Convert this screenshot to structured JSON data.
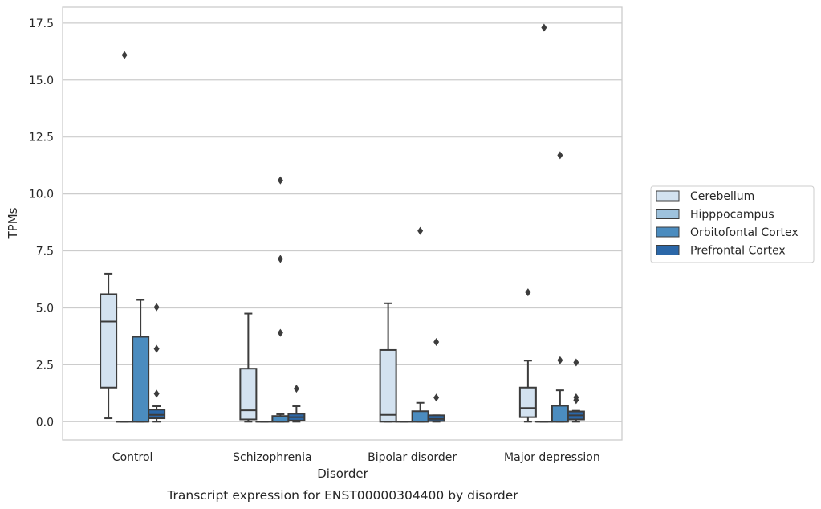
{
  "caption": "Transcript expression for ENST00000304400 by disorder",
  "chart_data": {
    "type": "box",
    "xlabel": "Disorder",
    "ylabel": "TPMs",
    "ylim": [
      -0.8,
      18.2
    ],
    "yticks": [
      "0.0",
      "2.5",
      "5.0",
      "7.5",
      "10.0",
      "12.5",
      "15.0",
      "17.5"
    ],
    "ytick_values": [
      0,
      2.5,
      5,
      7.5,
      10,
      12.5,
      15,
      17.5
    ],
    "grid": "horizontal",
    "legend_position": "right",
    "categories": [
      "Control",
      "Schizophrenia",
      "Bipolar disorder",
      "Major depression"
    ],
    "series": [
      {
        "name": "Cerebellum",
        "color": "#d3e2f0",
        "boxes": [
          {
            "q1": 1.5,
            "median": 4.4,
            "q3": 5.6,
            "whislo": 0.15,
            "whishi": 6.5,
            "fliers": []
          },
          {
            "q1": 0.1,
            "median": 0.5,
            "q3": 2.33,
            "whislo": 0.0,
            "whishi": 4.75,
            "fliers": []
          },
          {
            "q1": 0.0,
            "median": 0.3,
            "q3": 3.15,
            "whislo": 0.0,
            "whishi": 5.2,
            "fliers": []
          },
          {
            "q1": 0.2,
            "median": 0.6,
            "q3": 1.5,
            "whislo": 0.0,
            "whishi": 2.68,
            "fliers": [
              5.68
            ]
          }
        ]
      },
      {
        "name": "Hipppocampus",
        "color": "#9ec2dd",
        "boxes": [
          {
            "q1": 0.0,
            "median": 0.0,
            "q3": 0.0,
            "whislo": 0.0,
            "whishi": 0.0,
            "fliers": [
              16.1
            ]
          },
          {
            "q1": 0.0,
            "median": 0.0,
            "q3": 0.0,
            "whislo": 0.0,
            "whishi": 0.0,
            "fliers": []
          },
          {
            "q1": 0.0,
            "median": 0.0,
            "q3": 0.0,
            "whislo": 0.0,
            "whishi": 0.0,
            "fliers": []
          },
          {
            "q1": 0.0,
            "median": 0.0,
            "q3": 0.0,
            "whislo": 0.0,
            "whishi": 0.0,
            "fliers": [
              17.3
            ]
          }
        ]
      },
      {
        "name": "Orbitofontal Cortex",
        "color": "#4b8cbf",
        "boxes": [
          {
            "q1": 0.0,
            "median": 0.0,
            "q3": 3.73,
            "whislo": 0.0,
            "whishi": 5.35,
            "fliers": []
          },
          {
            "q1": 0.0,
            "median": 0.0,
            "q3": 0.25,
            "whislo": 0.0,
            "whishi": 0.33,
            "fliers": [
              3.9,
              7.15,
              10.6
            ]
          },
          {
            "q1": 0.0,
            "median": 0.0,
            "q3": 0.46,
            "whislo": 0.0,
            "whishi": 0.83,
            "fliers": [
              8.38
            ]
          },
          {
            "q1": 0.0,
            "median": 0.0,
            "q3": 0.7,
            "whislo": 0.0,
            "whishi": 1.38,
            "fliers": [
              2.7,
              11.7
            ]
          }
        ]
      },
      {
        "name": "Prefrontal Cortex",
        "color": "#2b67a8",
        "boxes": [
          {
            "q1": 0.15,
            "median": 0.3,
            "q3": 0.53,
            "whislo": 0.0,
            "whishi": 0.68,
            "fliers": [
              1.23,
              3.2,
              5.03
            ]
          },
          {
            "q1": 0.05,
            "median": 0.2,
            "q3": 0.35,
            "whislo": 0.0,
            "whishi": 0.68,
            "fliers": [
              1.45
            ]
          },
          {
            "q1": 0.03,
            "median": 0.12,
            "q3": 0.28,
            "whislo": 0.0,
            "whishi": 0.28,
            "fliers": [
              1.06,
              3.5
            ]
          },
          {
            "q1": 0.1,
            "median": 0.28,
            "q3": 0.45,
            "whislo": 0.0,
            "whishi": 0.48,
            "fliers": [
              0.95,
              1.07,
              2.6
            ]
          }
        ]
      }
    ]
  }
}
